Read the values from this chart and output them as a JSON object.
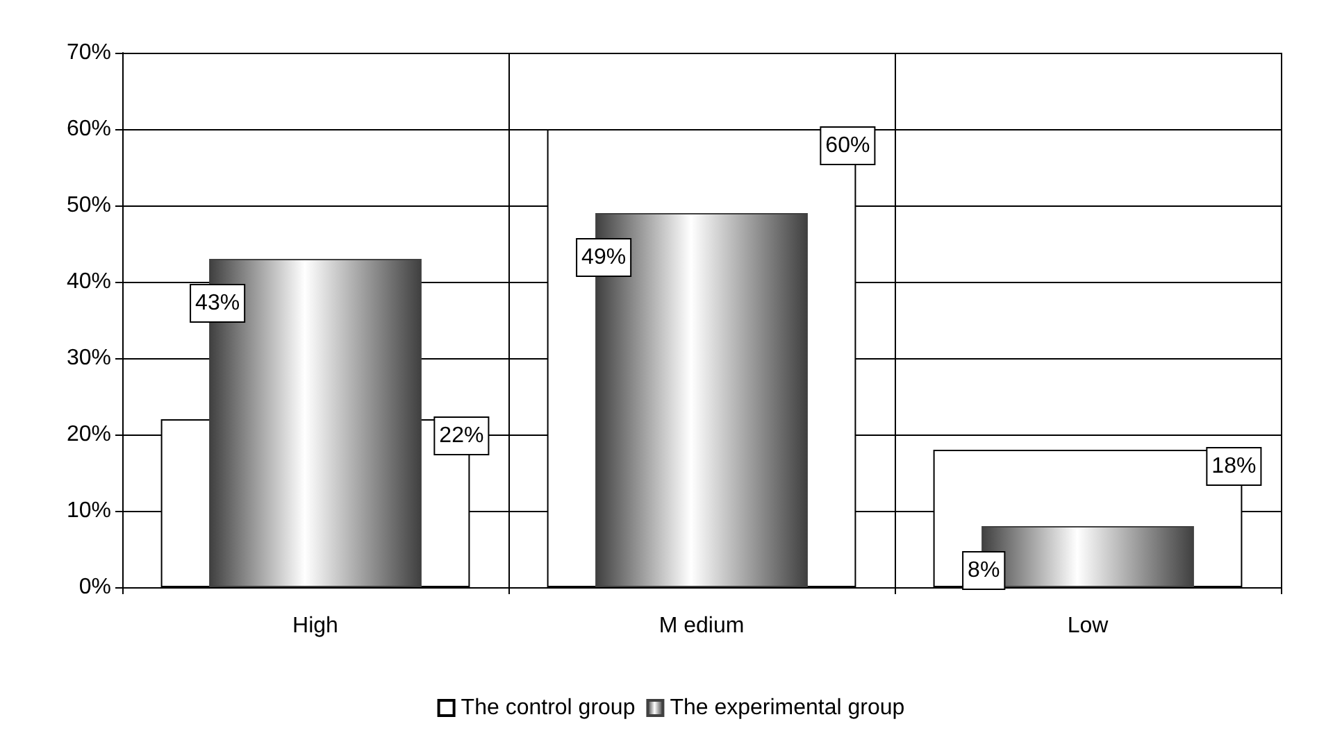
{
  "chart_data": {
    "type": "bar",
    "categories": [
      "High",
      "M edium",
      "Low"
    ],
    "series": [
      {
        "name": "The control group",
        "color": "#ffffff",
        "values": [
          22,
          60,
          18
        ],
        "value_labels": [
          "22%",
          "60%",
          "18%"
        ]
      },
      {
        "name": "The experimental group",
        "color": "#404040",
        "values": [
          43,
          49,
          8
        ],
        "value_labels": [
          "43%",
          "49%",
          "8%"
        ]
      }
    ],
    "ylim": [
      0,
      70
    ],
    "yticks": [
      {
        "value": 0,
        "label": "0%"
      },
      {
        "value": 10,
        "label": "10%"
      },
      {
        "value": 20,
        "label": "20%"
      },
      {
        "value": 30,
        "label": "30%"
      },
      {
        "value": 40,
        "label": "40%"
      },
      {
        "value": 50,
        "label": "50%"
      },
      {
        "value": 60,
        "label": "60%"
      },
      {
        "value": 70,
        "label": "70%"
      }
    ],
    "grid": true,
    "legend": "bottom"
  }
}
